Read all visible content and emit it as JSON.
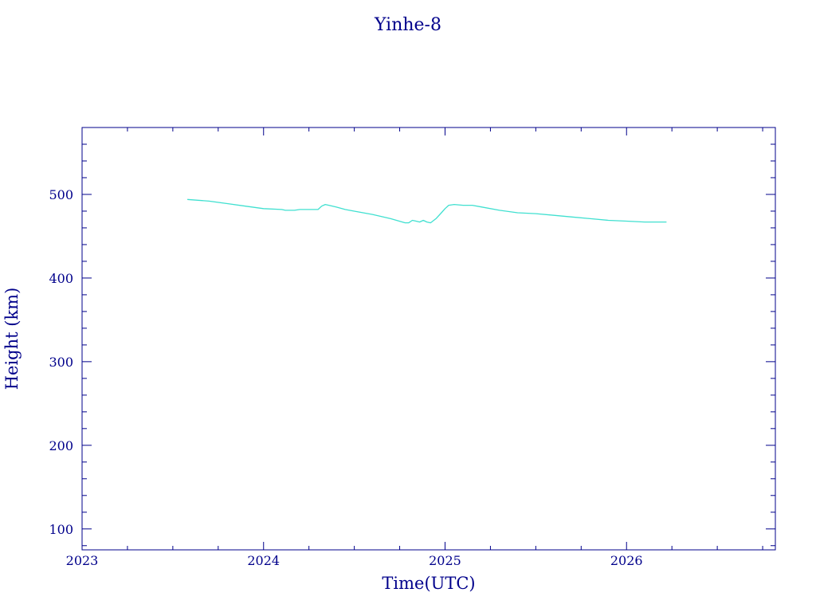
{
  "chart_data": {
    "type": "line",
    "title": "Yinhe-8",
    "xlabel": "Time(UTC)",
    "ylabel": "Height (km)",
    "xlim": [
      2023.0,
      2026.82
    ],
    "ylim": [
      75,
      580
    ],
    "x_ticks": [
      2023,
      2024,
      2025,
      2026
    ],
    "y_ticks": [
      100,
      200,
      300,
      400,
      500
    ],
    "grid": false,
    "colors": {
      "axes": "#00008b",
      "series": "#40e0d0",
      "background": "#ffffff"
    },
    "series": [
      {
        "x": [
          2023.58,
          2023.7,
          2023.8,
          2023.9,
          2024.0,
          2024.1,
          2024.12,
          2024.14,
          2024.17,
          2024.2,
          2024.22,
          2024.25,
          2024.3,
          2024.32,
          2024.34,
          2024.36,
          2024.4,
          2024.45,
          2024.5,
          2024.6,
          2024.7,
          2024.78,
          2024.8,
          2024.82,
          2024.84,
          2024.86,
          2024.88,
          2024.9,
          2024.92,
          2024.95,
          2024.98,
          2025.0,
          2025.02,
          2025.05,
          2025.1,
          2025.15,
          2025.2,
          2025.3,
          2025.4,
          2025.5,
          2025.6,
          2025.7,
          2025.8,
          2025.9,
          2026.0,
          2026.1,
          2026.15,
          2026.22
        ],
        "y": [
          494,
          492,
          489,
          486,
          483,
          482,
          481,
          481,
          481,
          482,
          482,
          482,
          482,
          486,
          488,
          487,
          485,
          482,
          480,
          476,
          471,
          466,
          466,
          469,
          468,
          467,
          469,
          467,
          466,
          471,
          478,
          483,
          487,
          488,
          487,
          487,
          485,
          481,
          478,
          477,
          475,
          473,
          471,
          469,
          468,
          467,
          467,
          467
        ]
      }
    ]
  }
}
